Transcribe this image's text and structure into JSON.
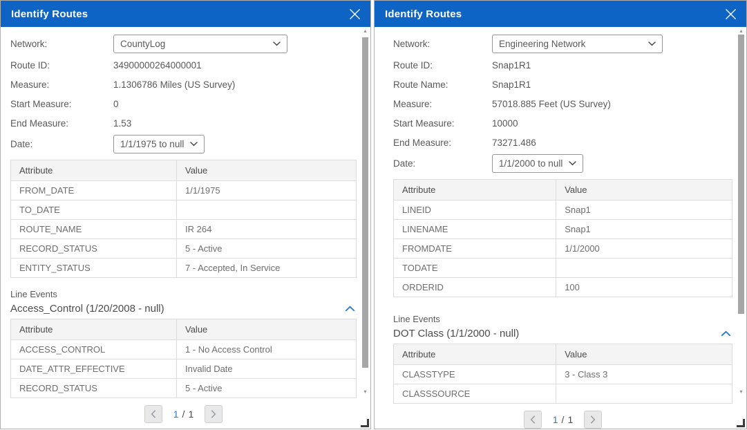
{
  "colors": {
    "titlebar_blue": "#0d64c4",
    "accent_blue": "#2e7ac7",
    "table_header_bg": "#f4f4f4",
    "table_border": "#dcdcdc",
    "text_gray": "#595959"
  },
  "icons": {
    "close": "✕",
    "chevron_down": "⌄",
    "chevron_up": "⌃",
    "prev": "‹",
    "next": "›",
    "scroll_up": "▴",
    "scroll_down": "▾"
  },
  "panels": [
    {
      "title": "Identify Routes",
      "fields": [
        {
          "label": "Network:",
          "value": "CountyLog",
          "control": "select",
          "wide": true
        },
        {
          "label": "Route ID:",
          "value": "34900000264000001",
          "control": "static"
        },
        {
          "label": "Measure:",
          "value": "1.1306786 Miles (US Survey)",
          "control": "static"
        },
        {
          "label": "Start Measure:",
          "value": "0",
          "control": "static"
        },
        {
          "label": "End Measure:",
          "value": "1.53",
          "control": "static"
        },
        {
          "label": "Date:",
          "value": "1/1/1975 to null",
          "control": "select",
          "wide": false
        }
      ],
      "main_table": {
        "headers": [
          "Attribute",
          "Value"
        ],
        "rows": [
          [
            "FROM_DATE",
            "1/1/1975"
          ],
          [
            "TO_DATE",
            ""
          ],
          [
            "ROUTE_NAME",
            "IR 264"
          ],
          [
            "RECORD_STATUS",
            "5 - Active"
          ],
          [
            "ENTITY_STATUS",
            "7 - Accepted, In Service"
          ]
        ]
      },
      "line_events": {
        "label": "Line Events",
        "group_title": "Access_Control (1/20/2008 - null)",
        "table": {
          "headers": [
            "Attribute",
            "Value"
          ],
          "rows": [
            [
              "ACCESS_CONTROL",
              "1 - No Access Control"
            ],
            [
              "DATE_ATTR_EFFECTIVE",
              "Invalid Date"
            ],
            [
              "RECORD_STATUS",
              "5 - Active"
            ]
          ]
        }
      },
      "pagination": {
        "current": "1",
        "separator": "/",
        "total": "1"
      }
    },
    {
      "title": "Identify Routes",
      "fields": [
        {
          "label": "Network:",
          "value": "Engineering Network",
          "control": "select",
          "wide": true
        },
        {
          "label": "Route ID:",
          "value": "Snap1R1",
          "control": "static"
        },
        {
          "label": "Route Name:",
          "value": "Snap1R1",
          "control": "static"
        },
        {
          "label": "Measure:",
          "value": "57018.885 Feet (US Survey)",
          "control": "static"
        },
        {
          "label": "Start Measure:",
          "value": "10000",
          "control": "static"
        },
        {
          "label": "End Measure:",
          "value": "73271.486",
          "control": "static"
        },
        {
          "label": "Date:",
          "value": "1/1/2000 to null",
          "control": "select",
          "wide": false
        }
      ],
      "main_table": {
        "headers": [
          "Attribute",
          "Value"
        ],
        "rows": [
          [
            "LINEID",
            "Snap1"
          ],
          [
            "LINENAME",
            "Snap1"
          ],
          [
            "FROMDATE",
            "1/1/2000"
          ],
          [
            "TODATE",
            ""
          ],
          [
            "ORDERID",
            "100"
          ]
        ]
      },
      "line_events": {
        "label": "Line Events",
        "group_title": "DOT Class (1/1/2000 - null)",
        "table": {
          "headers": [
            "Attribute",
            "Value"
          ],
          "rows": [
            [
              "CLASSTYPE",
              "3 - Class 3"
            ],
            [
              "CLASSSOURCE",
              ""
            ]
          ]
        }
      },
      "pagination": {
        "current": "1",
        "separator": "/",
        "total": "1"
      }
    }
  ]
}
